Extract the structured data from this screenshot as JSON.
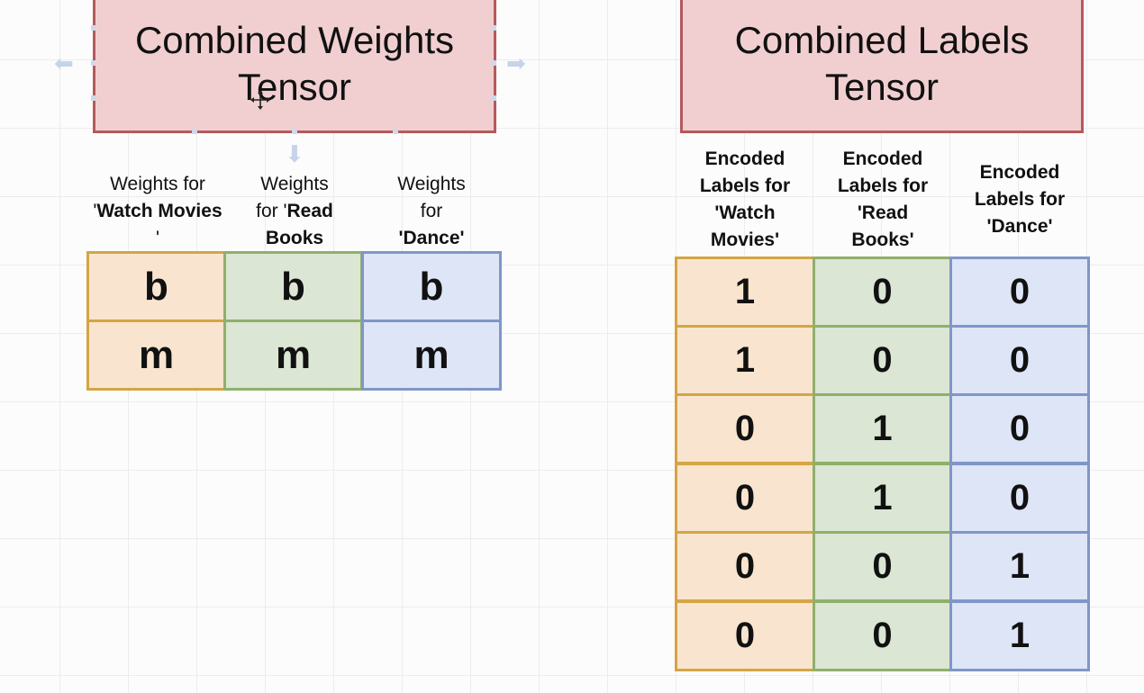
{
  "weights_block": {
    "title_line1": "Combined Weights",
    "title_line2": "Tensor",
    "headers": [
      {
        "pre": "Weights for",
        "mid": "'",
        "bold": "Watch Movies",
        "post": "'"
      },
      {
        "pre": "Weights",
        "mid": "for '",
        "bold": "Read Books",
        "post": "'"
      },
      {
        "pre": "Weights",
        "mid": "for",
        "bold": "'Dance'",
        "post": ""
      }
    ],
    "rows": [
      [
        "b",
        "b",
        "b"
      ],
      [
        "m",
        "m",
        "m"
      ]
    ]
  },
  "labels_block": {
    "title_line1": "Combined Labels",
    "title_line2": "Tensor",
    "headers": [
      [
        "Encoded",
        "Labels for",
        "'Watch",
        "Movies'"
      ],
      [
        "Encoded",
        "Labels for",
        "'Read",
        "Books'"
      ],
      [
        "Encoded",
        "Labels for",
        "'Dance'"
      ]
    ],
    "rows": [
      [
        "1",
        "0",
        "0"
      ],
      [
        "1",
        "0",
        "0"
      ],
      [
        "0",
        "1",
        "0"
      ],
      [
        "0",
        "1",
        "0"
      ],
      [
        "0",
        "0",
        "1"
      ],
      [
        "0",
        "0",
        "1"
      ]
    ]
  },
  "colors": {
    "title_fill": "#f1cfd0",
    "title_border": "#b45a5c",
    "col1_fill": "#f9e5cf",
    "col1_border": "#d4a544",
    "col2_fill": "#dbe6d4",
    "col2_border": "#8fb06b",
    "col3_fill": "#dde5f7",
    "col3_border": "#7f97c7"
  },
  "icons": [
    "selection-handle-icon",
    "move-cursor-icon",
    "nudge-arrow-icon"
  ]
}
